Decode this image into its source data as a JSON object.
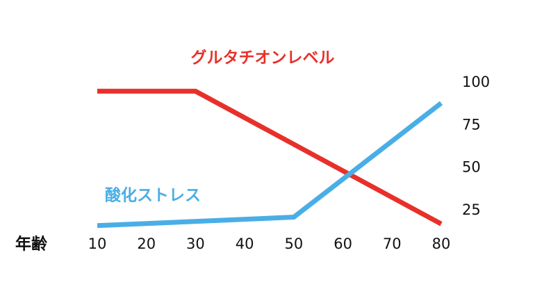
{
  "chart_data": {
    "type": "line",
    "xlabel": "年齢",
    "xlim": [
      10,
      80
    ],
    "xticks": [
      10,
      20,
      30,
      40,
      50,
      60,
      70,
      80
    ],
    "ylim": [
      0,
      100
    ],
    "yticks": [
      25,
      50,
      75,
      100
    ],
    "series": [
      {
        "name": "グルタチオンレベル",
        "color": "#e8302a",
        "x": [
          10,
          30,
          80
        ],
        "values": [
          95,
          95,
          17
        ]
      },
      {
        "name": "酸化ストレス",
        "color": "#4aaee6",
        "x": [
          10,
          50,
          80
        ],
        "values": [
          16,
          21,
          88
        ]
      }
    ]
  }
}
